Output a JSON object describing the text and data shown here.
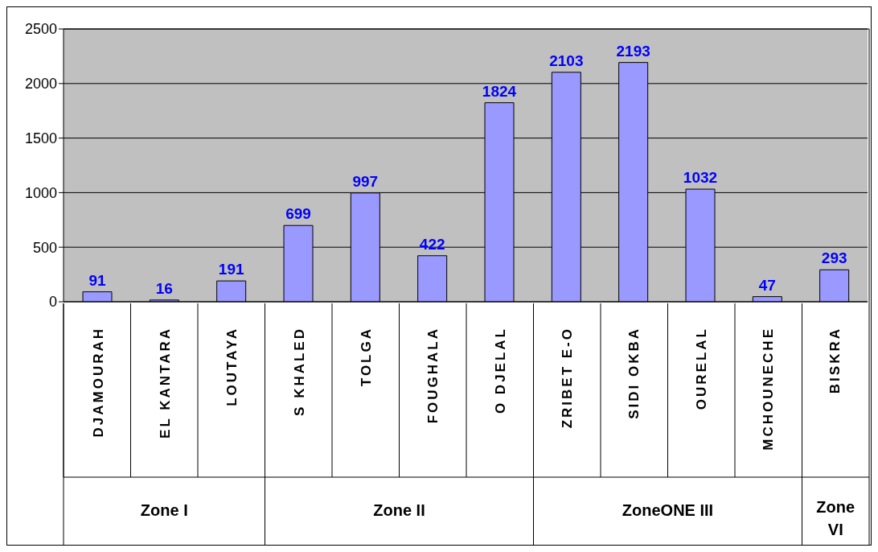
{
  "chart_data": {
    "type": "bar",
    "categories": [
      "DJAMOURAH",
      "EL KANTARA",
      "LOUTAYA",
      "S KHALED",
      "TOLGA",
      "FOUGHALA",
      "O DJELAL",
      "ZRIBET E-O",
      "SIDI OKBA",
      "OURELAL",
      "MCHOUNECHE",
      "BISKRA"
    ],
    "values": [
      91,
      16,
      191,
      699,
      997,
      422,
      1824,
      2103,
      2193,
      1032,
      47,
      293
    ],
    "color": "#9999ff",
    "ylim": [
      0,
      2500
    ],
    "yticks": [
      0,
      500,
      1000,
      1500,
      2000,
      2500
    ],
    "grid": "y",
    "data_labels": true,
    "annotations": [
      "Zone I",
      "Zone II",
      "ZoneONE III",
      "Zone VI"
    ]
  }
}
